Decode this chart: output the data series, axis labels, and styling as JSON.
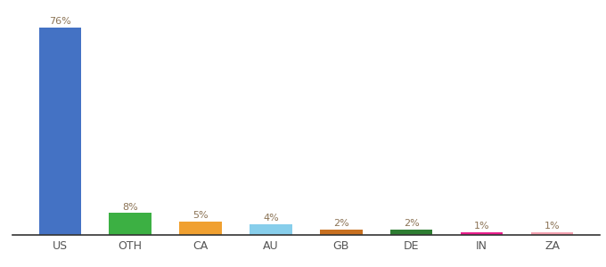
{
  "categories": [
    "US",
    "OTH",
    "CA",
    "AU",
    "GB",
    "DE",
    "IN",
    "ZA"
  ],
  "values": [
    76,
    8,
    5,
    4,
    2,
    2,
    1,
    1
  ],
  "bar_colors": [
    "#4472c4",
    "#3cb043",
    "#f0a030",
    "#87ceeb",
    "#c87020",
    "#2e7d32",
    "#e91e8c",
    "#f4a0b0"
  ],
  "label_color": "#8B7355",
  "background_color": "#ffffff",
  "ylim": [
    0,
    83
  ],
  "bar_width": 0.6
}
